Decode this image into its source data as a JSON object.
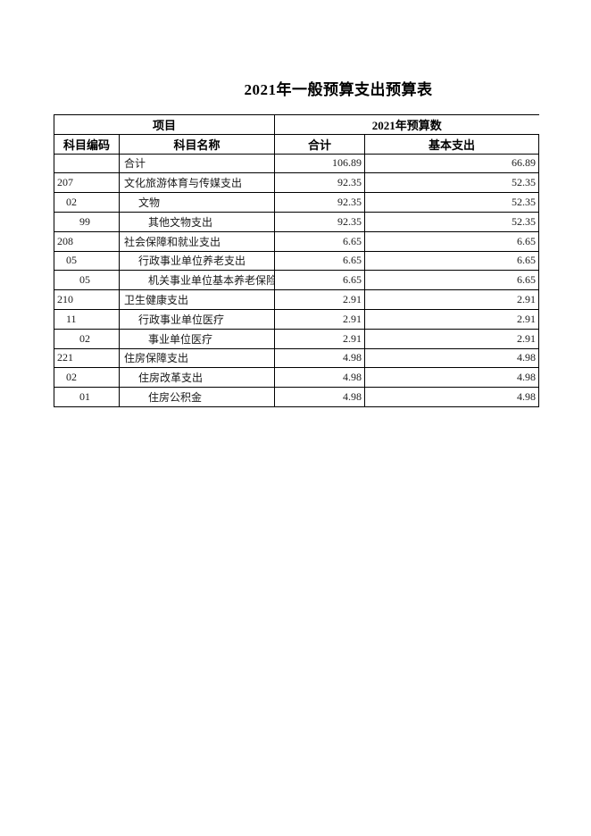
{
  "title": "2021年一般预算支出预算表",
  "table": {
    "header_row1": {
      "item_group": "项目",
      "budget_group": "2021年预算数"
    },
    "header_row2": {
      "code": "科目编码",
      "name": "科目名称",
      "total": "合计",
      "basic": "基本支出"
    },
    "rows": [
      {
        "code": "",
        "name": "合计",
        "total": "106.89",
        "basic": "66.89"
      },
      {
        "code": "207",
        "name": "文化旅游体育与传媒支出",
        "total": "92.35",
        "basic": "52.35"
      },
      {
        "code": "02",
        "name": "文物",
        "total": "92.35",
        "basic": "52.35"
      },
      {
        "code": "99",
        "name": "其他文物支出",
        "total": "92.35",
        "basic": "52.35"
      },
      {
        "code": "208",
        "name": "社会保障和就业支出",
        "total": "6.65",
        "basic": "6.65"
      },
      {
        "code": "05",
        "name": "行政事业单位养老支出",
        "total": "6.65",
        "basic": "6.65"
      },
      {
        "code": "05",
        "name": "机关事业单位基本养老保险",
        "total": "6.65",
        "basic": "6.65"
      },
      {
        "code": "210",
        "name": "卫生健康支出",
        "total": "2.91",
        "basic": "2.91"
      },
      {
        "code": "11",
        "name": "行政事业单位医疗",
        "total": "2.91",
        "basic": "2.91"
      },
      {
        "code": "02",
        "name": "事业单位医疗",
        "total": "2.91",
        "basic": "2.91"
      },
      {
        "code": "221",
        "name": "住房保障支出",
        "total": "4.98",
        "basic": "4.98"
      },
      {
        "code": "02",
        "name": "住房改革支出",
        "total": "4.98",
        "basic": "4.98"
      },
      {
        "code": "01",
        "name": "住房公积金",
        "total": "4.98",
        "basic": "4.98"
      }
    ]
  },
  "colors": {
    "background": "#ffffff",
    "border": "#000000",
    "text": "#1a1a1a"
  }
}
